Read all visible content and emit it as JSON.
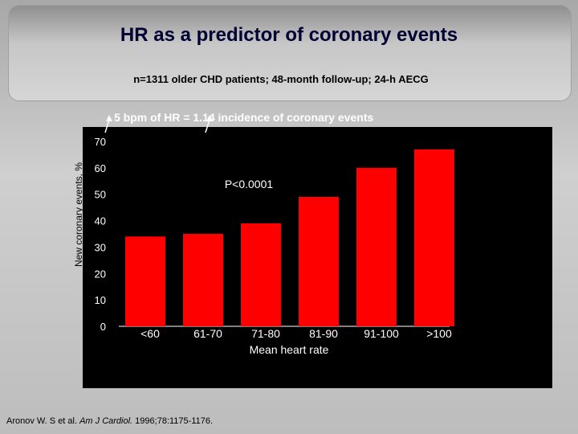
{
  "slide": {
    "title": "HR as a predictor of coronary events",
    "subtitle": "n=1311 older CHD patients; 48-month follow-up; 24-h AECG",
    "annotation": "5 bpm of HR = 1.14 incidence of coronary events",
    "citation_prefix": "Aronov W. S et al. ",
    "citation_journal": "Am J Cardiol.",
    "citation_suffix": " 1996;78:1175-1176.",
    "colors": {
      "bar": "#ff0000",
      "panel": "#000000",
      "title": "#000033"
    }
  },
  "chart_data": {
    "type": "bar",
    "categories": [
      "<60",
      "61-70",
      "71-80",
      "81-90",
      "91-100",
      ">100"
    ],
    "values": [
      34,
      35,
      39,
      49,
      60,
      67
    ],
    "xlabel": "Mean heart rate",
    "ylabel": "New coronary events, %",
    "ylim": [
      0,
      70
    ],
    "yticks": [
      "0",
      "10",
      "20",
      "30",
      "40",
      "50",
      "60",
      "70"
    ],
    "annotation_p": "P<0.0001",
    "grid": false,
    "legend": "none"
  }
}
